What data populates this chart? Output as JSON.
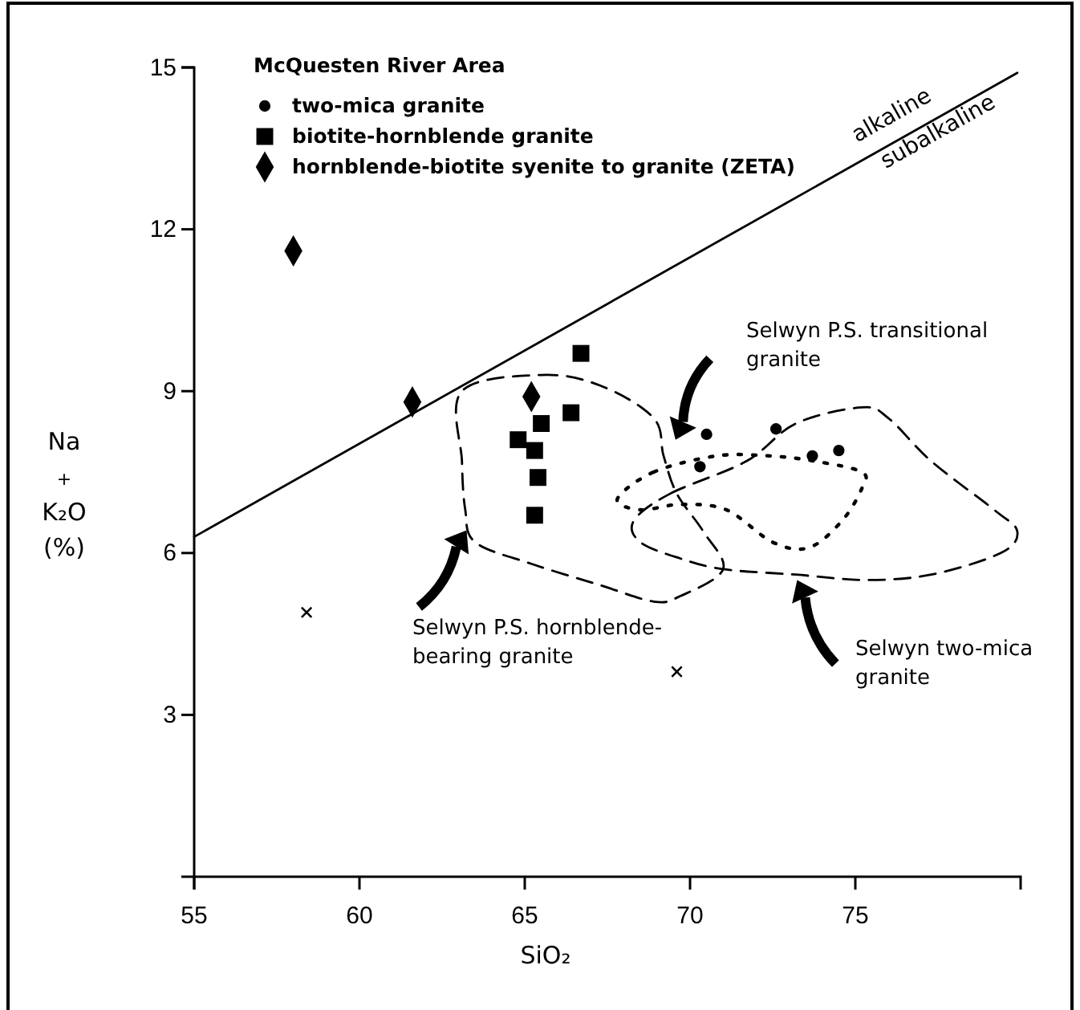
{
  "chart_data": {
    "type": "scatter",
    "legend_title": "McQuesten River Area",
    "xlabel": "SiO₂",
    "ylabel": "Na + K₂O (%)",
    "xlim": [
      55,
      80
    ],
    "ylim": [
      0,
      15
    ],
    "xticks": [
      55,
      60,
      65,
      70,
      75
    ],
    "yticks": [
      3,
      6,
      9,
      12,
      15
    ],
    "legend": "top left",
    "series": [
      {
        "name": "two-mica granite",
        "marker": "circle",
        "color": "#000000",
        "x": [
          70.5,
          72.6,
          70.3,
          73.7,
          74.5
        ],
        "values": [
          8.2,
          8.3,
          7.6,
          7.8,
          7.9
        ]
      },
      {
        "name": "biotite-hornblende granite",
        "marker": "square",
        "color": "#000000",
        "x": [
          66.7,
          66.4,
          65.5,
          64.8,
          65.3,
          65.4,
          65.3
        ],
        "values": [
          9.7,
          8.6,
          8.4,
          8.1,
          7.9,
          7.4,
          6.7
        ]
      },
      {
        "name": "hornblende-biotite syenite to granite (ZETA)",
        "marker": "diamond",
        "color": "#000000",
        "x": [
          58.0,
          61.6,
          65.2
        ],
        "values": [
          11.6,
          8.8,
          8.9
        ]
      },
      {
        "marker": "cross",
        "color": "#000000",
        "x": [
          58.4,
          69.6
        ],
        "values": [
          4.9,
          3.8
        ]
      },
      {
        "type": "line",
        "marker": "none",
        "line_style": "solid",
        "color": "#000000",
        "x": [
          55,
          79.9
        ],
        "values": [
          6.3,
          14.9
        ]
      }
    ],
    "annotations": [
      "alkaline",
      "subalkaline",
      "Selwyn P.S. transitional\ngranite",
      "Selwyn P.S. hornblende-\nbearing granite",
      "Selwyn two-mica\ngranite"
    ]
  }
}
